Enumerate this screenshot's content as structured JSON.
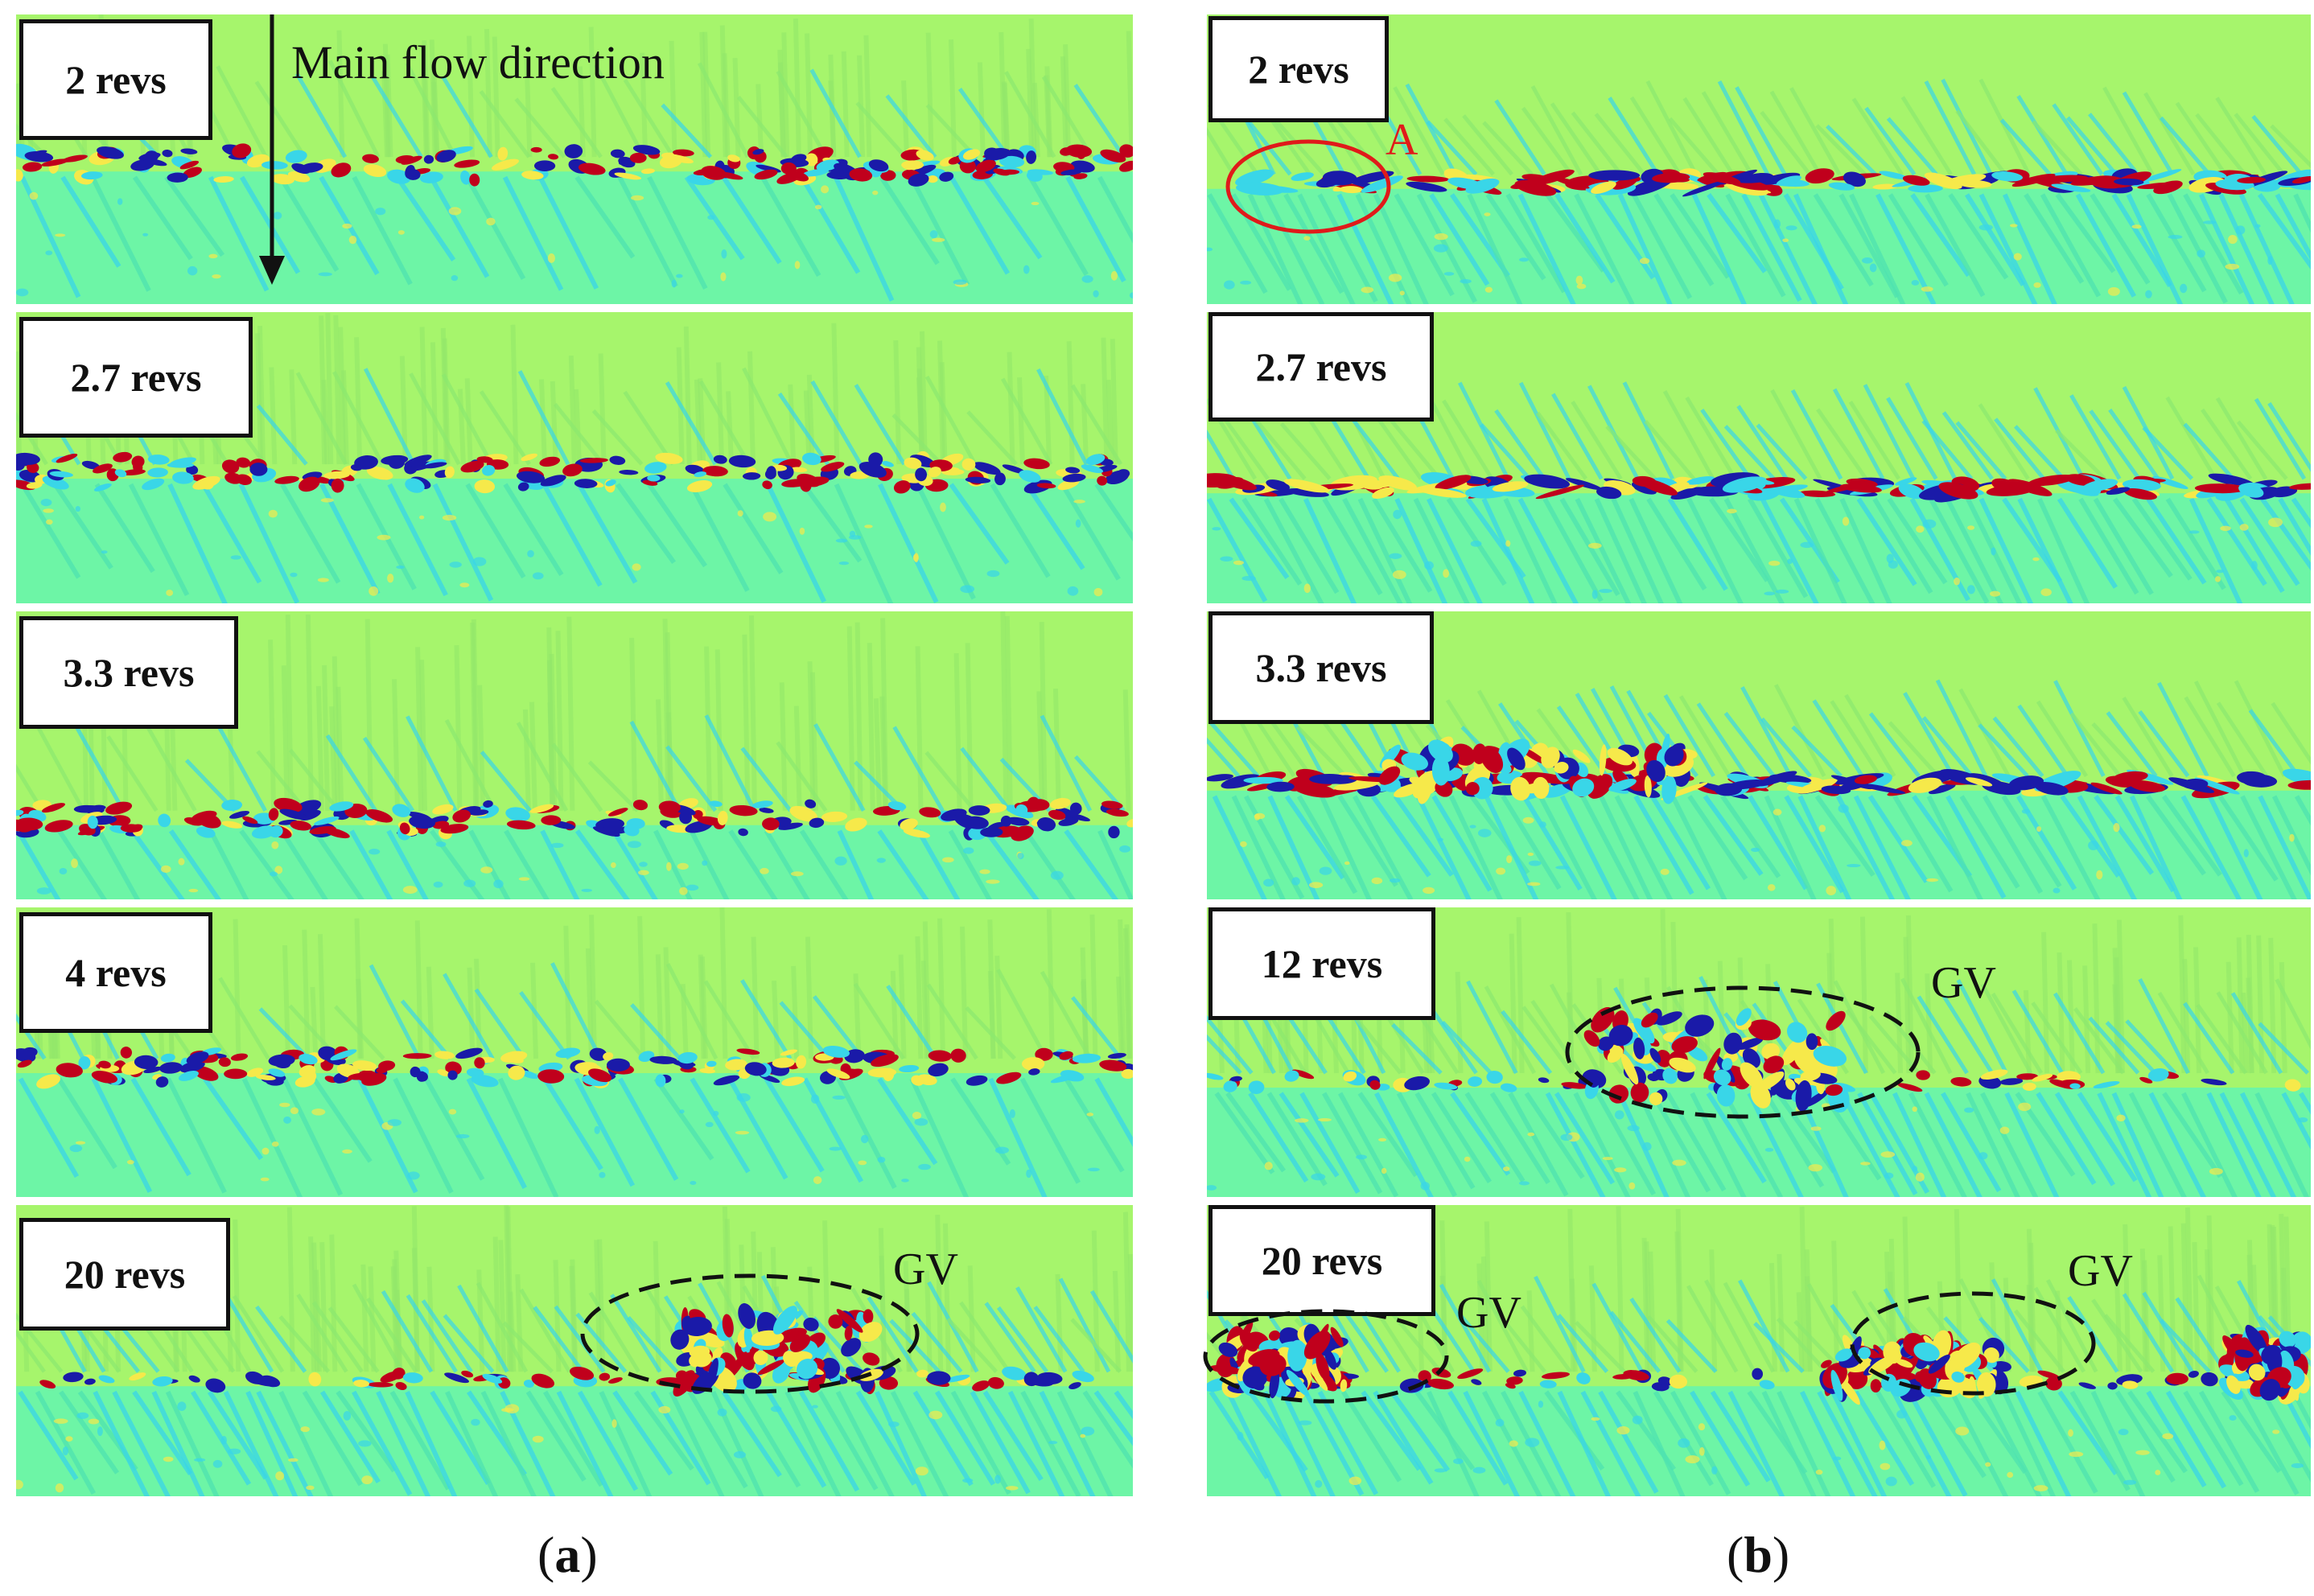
{
  "figure": {
    "left_column_caption": {
      "open": "(",
      "letter": "a",
      "close": ")"
    },
    "right_column_caption": {
      "open": "(",
      "letter": "b",
      "close": ")"
    },
    "main_flow_label": "Main flow direction",
    "colors": {
      "background": "#a6f56c",
      "lower_field": "#6df5a6",
      "vortex_red": "#c0001c",
      "vortex_blue": "#1a1aa8",
      "cyan": "#39d6e8",
      "yellow": "#f6e94a",
      "ellipse_red": "#e01a1a",
      "ellipse_black": "#111111"
    },
    "left_panels": [
      {
        "label": "2 revs"
      },
      {
        "label": "2.7 revs"
      },
      {
        "label": "3.3 revs"
      },
      {
        "label": "4 revs"
      },
      {
        "label": "20 revs",
        "annotation": "GV"
      }
    ],
    "right_panels": [
      {
        "label": "2 revs",
        "annotation": "A"
      },
      {
        "label": "2.7 revs"
      },
      {
        "label": "3.3 revs"
      },
      {
        "label": "12 revs",
        "annotation": "GV"
      },
      {
        "label": "20 revs",
        "annotations": [
          "GV",
          "GV"
        ]
      }
    ]
  }
}
